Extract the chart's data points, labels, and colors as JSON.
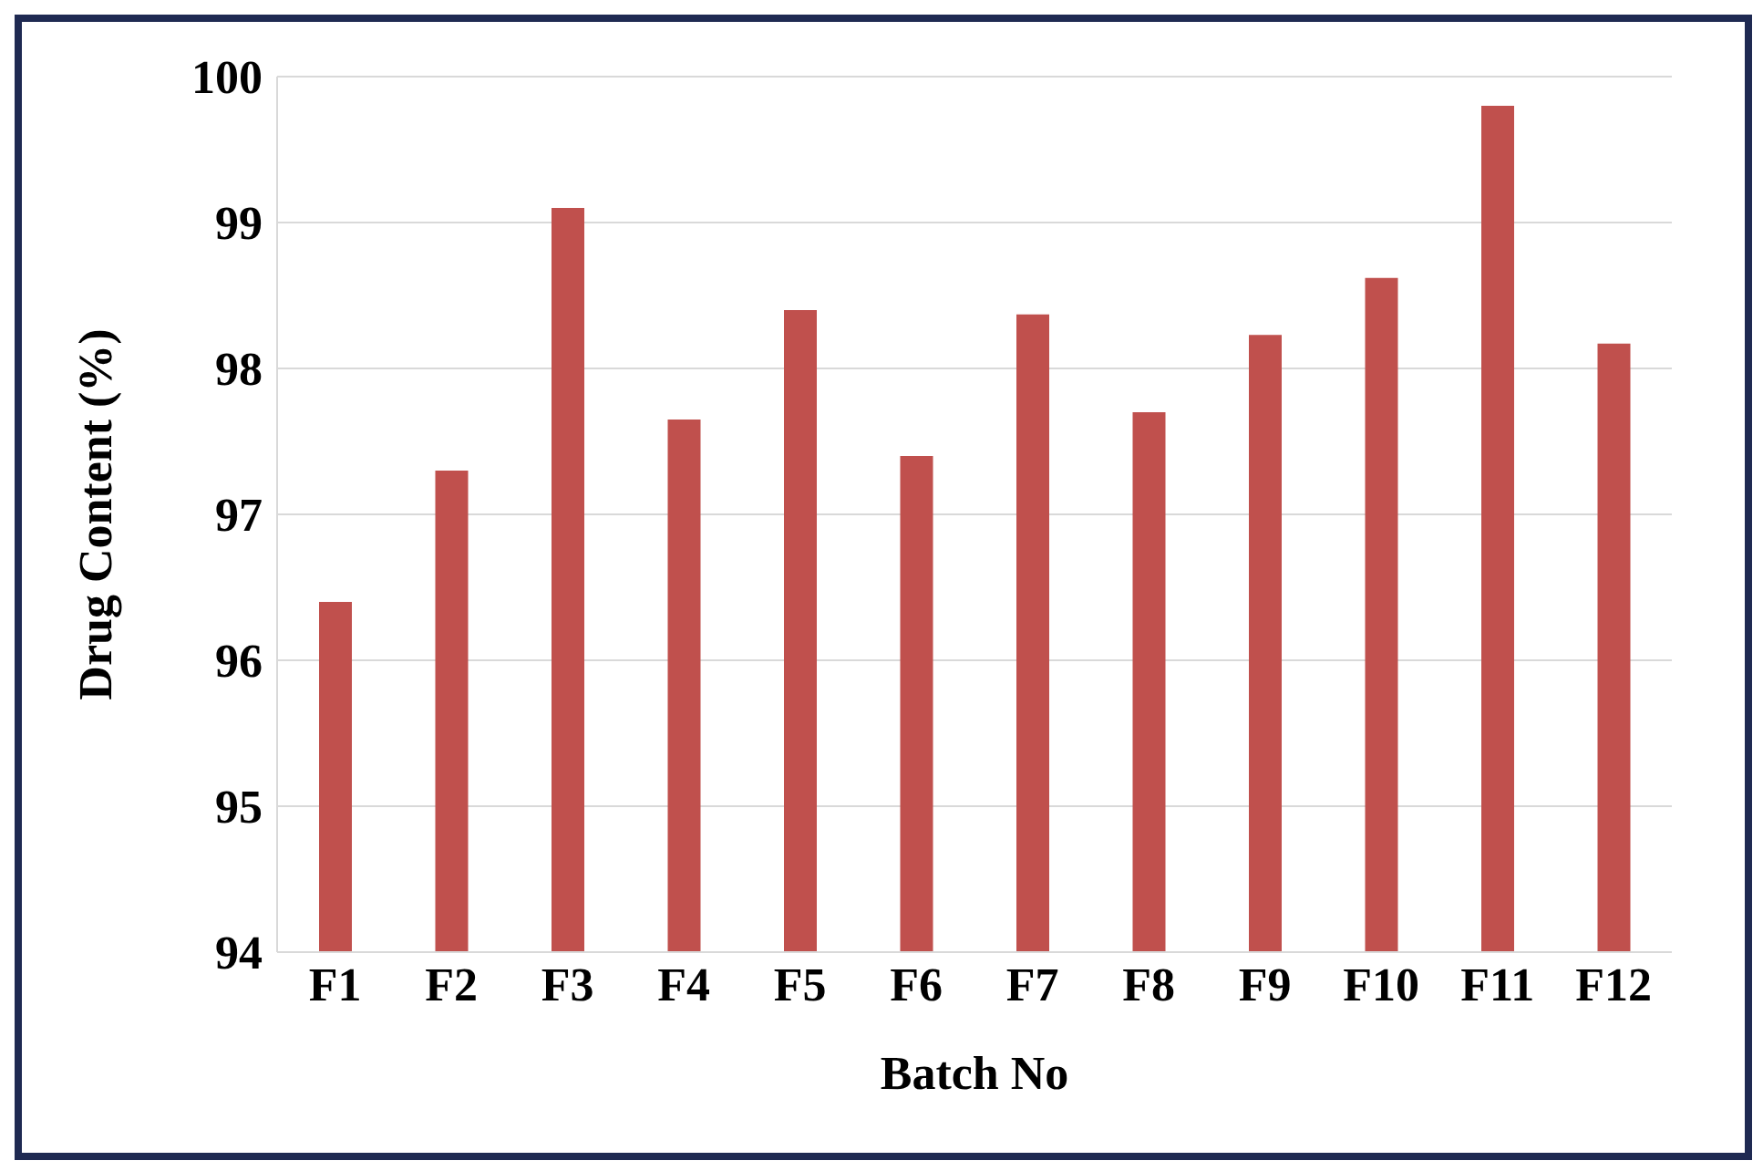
{
  "chart_data": {
    "type": "bar",
    "xlabel": "Batch No",
    "ylabel": "Drug Content (%)",
    "categories": [
      "F1",
      "F2",
      "F3",
      "F4",
      "F5",
      "F6",
      "F7",
      "F8",
      "F9",
      "F10",
      "F11",
      "F12"
    ],
    "values": [
      96.4,
      97.3,
      99.1,
      97.65,
      98.4,
      97.4,
      98.37,
      97.7,
      98.23,
      98.62,
      99.8,
      98.17
    ],
    "color": "#c0504d",
    "ylim": [
      94,
      100
    ],
    "yticks": [
      94,
      95,
      96,
      97,
      98,
      99,
      100
    ],
    "grid": "y"
  }
}
